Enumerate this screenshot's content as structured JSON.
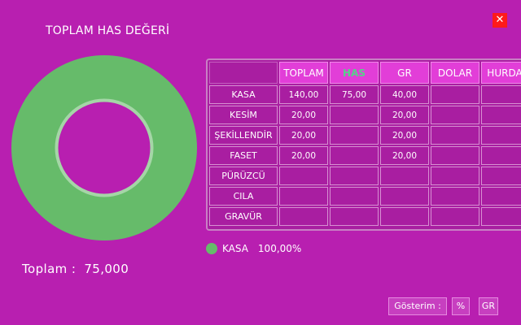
{
  "title": "TOPLAM HAS DEĞERİ",
  "close_label": "✕",
  "colors": {
    "background": "#b81fb0",
    "donut": "#66bb6a",
    "donut_ring": "#a5d6a7",
    "close": "#ff1a1a",
    "header": "#e23ed8",
    "has_header_text": "#58d08a"
  },
  "total": {
    "label": "Toplam :",
    "value": "75,000"
  },
  "table": {
    "headers": [
      "TOPLAM",
      "HAS",
      "GR",
      "DOLAR",
      "HURDA"
    ],
    "rows": [
      {
        "label": "KASA",
        "cells": [
          "140,00",
          "75,00",
          "40,00",
          "",
          ""
        ]
      },
      {
        "label": "KESİM",
        "cells": [
          "20,00",
          "",
          "20,00",
          "",
          ""
        ]
      },
      {
        "label": "ŞEKİLLENDİR",
        "cells": [
          "20,00",
          "",
          "20,00",
          "",
          ""
        ]
      },
      {
        "label": "FASET",
        "cells": [
          "20,00",
          "",
          "20,00",
          "",
          ""
        ]
      },
      {
        "label": "PÜRÜZCÜ",
        "cells": [
          "",
          "",
          "",
          "",
          ""
        ]
      },
      {
        "label": "CILA",
        "cells": [
          "",
          "",
          "",
          "",
          ""
        ]
      },
      {
        "label": "GRAVÜR",
        "cells": [
          "",
          "",
          "",
          "",
          ""
        ]
      }
    ]
  },
  "chart_data": {
    "type": "pie",
    "title": "TOPLAM HAS DEĞERİ",
    "categories": [
      "KASA"
    ],
    "values": [
      100.0
    ]
  },
  "legend": {
    "label": "KASA",
    "percent": "100,00%"
  },
  "display": {
    "label": "Gösterim :",
    "percent_button": "%",
    "gr_button": "GR"
  }
}
